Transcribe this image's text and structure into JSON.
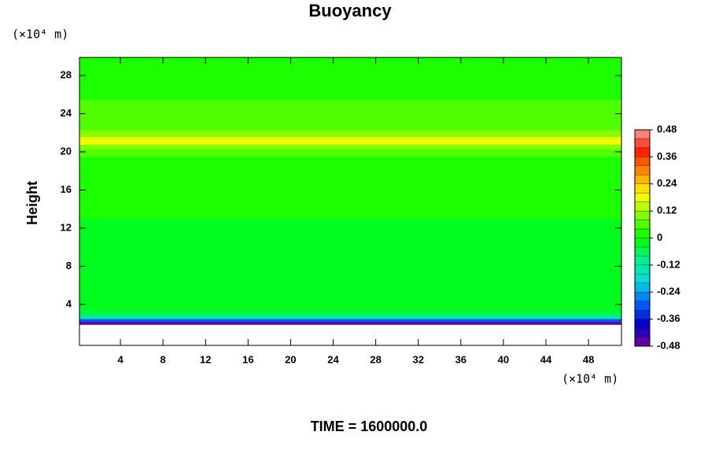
{
  "chart_data": {
    "type": "heatmap",
    "title": "Buoyancy",
    "ylabel": "Height",
    "x_unit": "(×10⁴ m)",
    "y_unit": "(×10⁴ m)",
    "footer": "TIME = 1600000.0",
    "xlim": [
      0.15,
      51.1
    ],
    "xticks": [
      4,
      8,
      12,
      16,
      20,
      24,
      28,
      32,
      36,
      40,
      44,
      48
    ],
    "ylim": [
      -0.3,
      29.9
    ],
    "yticks": [
      4,
      8,
      12,
      16,
      20,
      24,
      28
    ],
    "y_edges": [
      1.9,
      2.2,
      2.5,
      2.8,
      3.3,
      7.5,
      13,
      19.5,
      20.3,
      20.8,
      21.6,
      22.3,
      23,
      25.5,
      29.9
    ],
    "values": [
      -0.44,
      -0.32,
      -0.16,
      -0.06,
      -0.04,
      -0.02,
      0.0,
      0.04,
      0.1,
      0.16,
      0.1,
      0.06,
      0.04,
      0.02
    ],
    "clim": [
      -0.48,
      0.48
    ],
    "cticks": [
      0.48,
      0.36,
      0.24,
      0.12,
      0,
      -0.12,
      -0.24,
      -0.36,
      -0.48
    ],
    "colormap": [
      "#7a00a0",
      "#0000c8",
      "#0064ff",
      "#00dcdc",
      "#00f08c",
      "#00ff00",
      "#80ff00",
      "#ffff00",
      "#ff9600",
      "#ff1e00",
      "#ff9a9a"
    ]
  }
}
